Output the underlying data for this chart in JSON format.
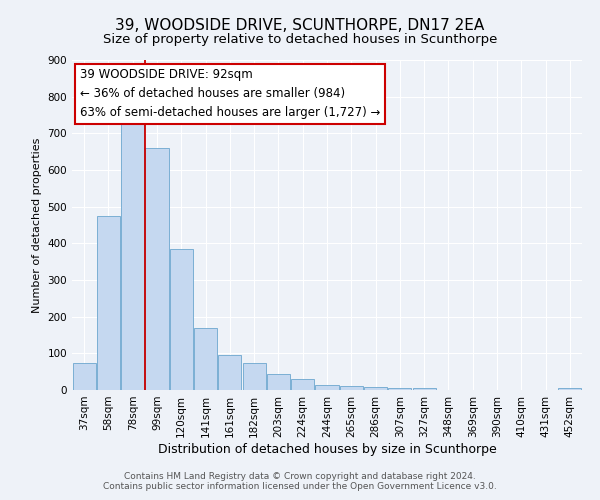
{
  "title": "39, WOODSIDE DRIVE, SCUNTHORPE, DN17 2EA",
  "subtitle": "Size of property relative to detached houses in Scunthorpe",
  "xlabel": "Distribution of detached houses by size in Scunthorpe",
  "ylabel": "Number of detached properties",
  "bin_labels": [
    "37sqm",
    "58sqm",
    "78sqm",
    "99sqm",
    "120sqm",
    "141sqm",
    "161sqm",
    "182sqm",
    "203sqm",
    "224sqm",
    "244sqm",
    "265sqm",
    "286sqm",
    "307sqm",
    "327sqm",
    "348sqm",
    "369sqm",
    "390sqm",
    "410sqm",
    "431sqm",
    "452sqm"
  ],
  "bin_values": [
    75,
    475,
    735,
    660,
    385,
    170,
    95,
    75,
    43,
    30,
    13,
    10,
    8,
    5,
    5,
    0,
    0,
    0,
    0,
    0,
    5
  ],
  "bar_color": "#c5d8f0",
  "bar_edge_color": "#7bafd4",
  "vline_color": "#cc0000",
  "ylim": [
    0,
    900
  ],
  "yticks": [
    0,
    100,
    200,
    300,
    400,
    500,
    600,
    700,
    800,
    900
  ],
  "annotation_line1": "39 WOODSIDE DRIVE: 92sqm",
  "annotation_line2": "← 36% of detached houses are smaller (984)",
  "annotation_line3": "63% of semi-detached houses are larger (1,727) →",
  "annotation_box_color": "#ffffff",
  "annotation_box_edge_color": "#cc0000",
  "footer_line1": "Contains HM Land Registry data © Crown copyright and database right 2024.",
  "footer_line2": "Contains public sector information licensed under the Open Government Licence v3.0.",
  "background_color": "#eef2f8",
  "grid_color": "#ffffff",
  "title_fontsize": 11,
  "subtitle_fontsize": 9.5,
  "xlabel_fontsize": 9,
  "ylabel_fontsize": 8,
  "tick_fontsize": 7.5,
  "annotation_fontsize": 8.5,
  "footer_fontsize": 6.5
}
